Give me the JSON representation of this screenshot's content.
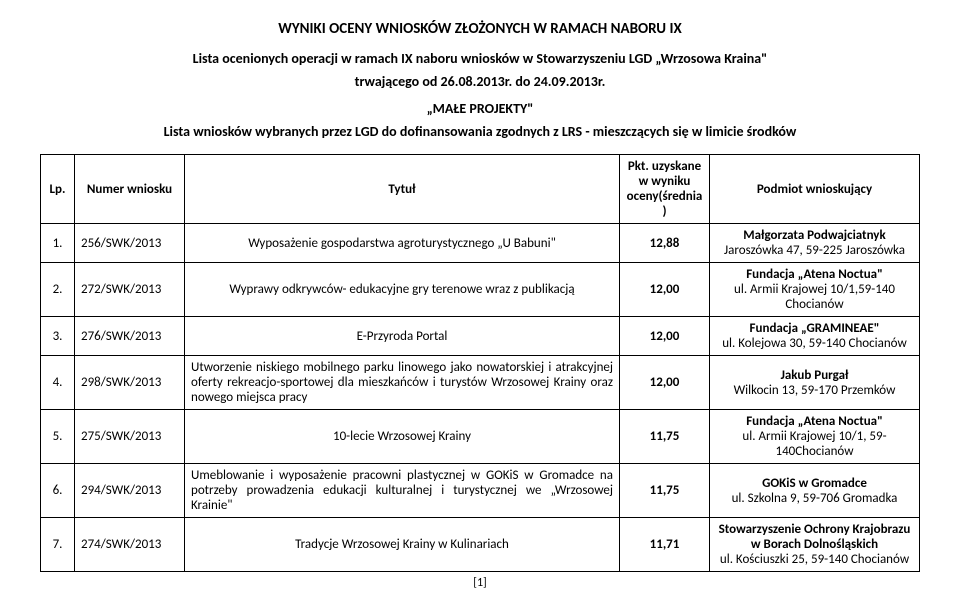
{
  "headings": {
    "h1": "WYNIKI OCENY WNIOSKÓW ZŁOŻONYCH W RAMACH NABORU IX",
    "h2": "Lista ocenionych operacji w ramach IX naboru wniosków w Stowarzyszeniu LGD „Wrzosowa Kraina\"",
    "h3": "trwającego od 26.08.2013r. do 24.09.2013r.",
    "h4": "„MAŁE PROJEKTY\"",
    "h5": "Lista wniosków wybranych przez LGD do dofinansowania zgodnych z LRS - mieszczących się w limicie środków"
  },
  "footer": {
    "page": "[1]"
  },
  "table": {
    "headers": {
      "lp": "Lp.",
      "nr": "Numer wniosku",
      "title": "Tytuł",
      "pkt": "Pkt. uzyskane w wyniku oceny(średnia)",
      "pod": "Podmiot wnioskujący"
    },
    "rows": [
      {
        "lp": "1.",
        "nr": "256/SWK/2013",
        "title": "Wyposażenie gospodarstwa agroturystycznego „U Babuni\"",
        "pkt": "12,88",
        "pod_bold": "Małgorzata Podwajciatnyk",
        "pod_rest": "Jaroszówka 47, 59-225 Jaroszówka"
      },
      {
        "lp": "2.",
        "nr": "272/SWK/2013",
        "title": "Wyprawy odkrywców- edukacyjne gry terenowe wraz z publikacją",
        "pkt": "12,00",
        "pod_bold": "Fundacja „Atena Noctua\"",
        "pod_rest": "ul. Armii Krajowej 10/1,59-140 Chocianów"
      },
      {
        "lp": "3.",
        "nr": "276/SWK/2013",
        "title": "E-Przyroda Portal",
        "pkt": "12,00",
        "pod_bold": "Fundacja „GRAMINEAE\"",
        "pod_rest": "ul. Kolejowa 30, 59-140 Chocianów"
      },
      {
        "lp": "4.",
        "nr": "298/SWK/2013",
        "title": "Utworzenie niskiego mobilnego parku linowego jako nowatorskiej i atrakcyjnej oferty rekreacjo-sportowej dla mieszkańców i turystów Wrzosowej Krainy oraz nowego miejsca pracy",
        "pkt": "12,00",
        "pod_bold": "Jakub Purgał",
        "pod_rest": "Wilkocin 13, 59-170 Przemków"
      },
      {
        "lp": "5.",
        "nr": "275/SWK/2013",
        "title": "10-lecie Wrzosowej Krainy",
        "pkt": "11,75",
        "pod_bold": "Fundacja „Atena Noctua\"",
        "pod_rest": "ul. Armii Krajowej 10/1, 59-140Chocianów"
      },
      {
        "lp": "6.",
        "nr": "294/SWK/2013",
        "title": "Umeblowanie i wyposażenie pracowni plastycznej w GOKiS w Gromadce na potrzeby prowadzenia edukacji kulturalnej i turystycznej we „Wrzosowej Krainie\"",
        "pkt": "11,75",
        "pod_bold": "GOKiS w Gromadce",
        "pod_rest": "ul. Szkolna 9, 59-706 Gromadka"
      },
      {
        "lp": "7.",
        "nr": "274/SWK/2013",
        "title": "Tradycje Wrzosowej Krainy w Kulinariach",
        "pkt": "11,71",
        "pod_bold": "Stowarzyszenie Ochrony Krajobrazu w Borach Dolnośląskich",
        "pod_rest": "ul. Kościuszki 25, 59-140 Chocianów"
      }
    ]
  }
}
